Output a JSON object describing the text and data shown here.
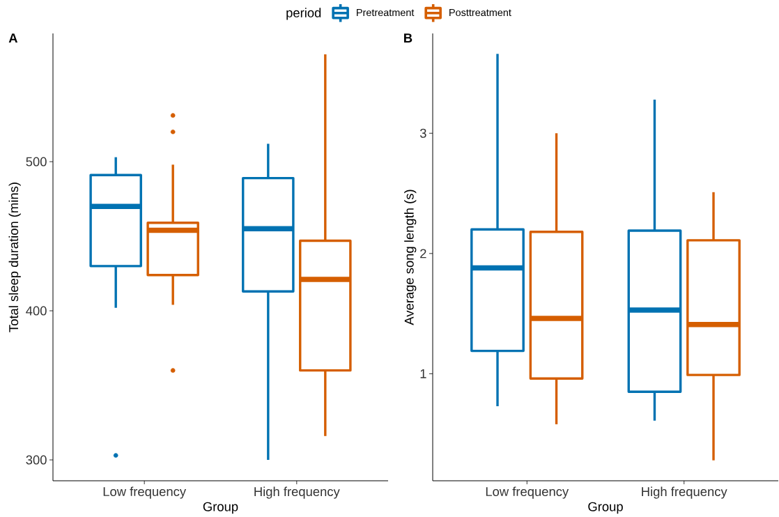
{
  "chart_data": [
    {
      "type": "box",
      "title": "A",
      "xlabel": "Group",
      "ylabel": "Total sleep duration (mins)",
      "legend_title": "period",
      "legend": "top",
      "categories": [
        "Low frequency",
        "High frequency"
      ],
      "series": [
        {
          "name": "Pretreatment",
          "color": "#0072B2",
          "boxes": [
            {
              "low": 402,
              "q1": 430,
              "median": 470,
              "q3": 491,
              "high": 503,
              "outliers": [
                303
              ]
            },
            {
              "low": 300,
              "q1": 413,
              "median": 455,
              "q3": 489,
              "high": 512
            }
          ]
        },
        {
          "name": "Posttreatment",
          "color": "#D55E00",
          "boxes": [
            {
              "low": 404,
              "q1": 424,
              "median": 454,
              "q3": 459,
              "high": 498,
              "outliers": [
                360,
                520,
                531
              ]
            },
            {
              "low": 316,
              "q1": 360,
              "median": 421,
              "q3": 447,
              "high": 572
            }
          ]
        }
      ],
      "ylim": [
        286,
        586
      ],
      "yticks": [
        300,
        400,
        500
      ]
    },
    {
      "type": "box",
      "title": "B",
      "xlabel": "Group",
      "ylabel": "Average song length (s)",
      "categories": [
        "Low frequency",
        "High frequency"
      ],
      "series": [
        {
          "color": "#0072B2",
          "boxes": [
            {
              "low": 0.73,
              "q1": 1.19,
              "median": 1.88,
              "q3": 2.2,
              "high": 3.66
            },
            {
              "low": 0.61,
              "q1": 0.85,
              "median": 1.53,
              "q3": 2.19,
              "high": 3.28
            }
          ]
        },
        {
          "color": "#D55E00",
          "boxes": [
            {
              "low": 0.58,
              "q1": 0.96,
              "median": 1.46,
              "q3": 2.18,
              "high": 3.0
            },
            {
              "low": 0.28,
              "q1": 0.99,
              "median": 1.41,
              "q3": 2.11,
              "high": 2.51
            }
          ]
        }
      ],
      "ylim": [
        0.11,
        3.83
      ],
      "yticks": [
        1,
        2,
        3
      ]
    }
  ]
}
